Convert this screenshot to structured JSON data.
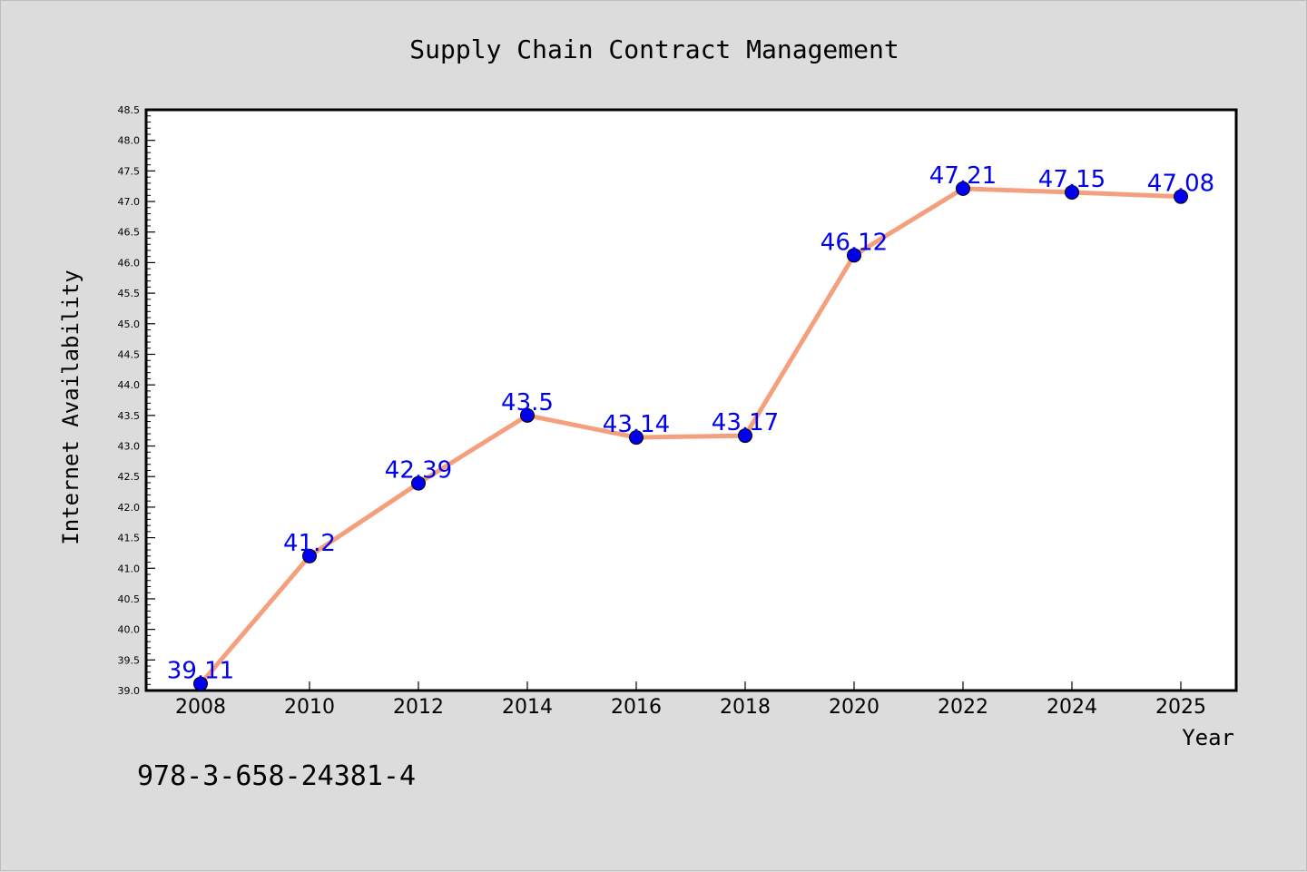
{
  "chart_data": {
    "type": "line",
    "title": "Supply Chain Contract Management",
    "xlabel": "Year",
    "ylabel": "Internet Availability",
    "categories": [
      "2008",
      "2010",
      "2012",
      "2014",
      "2016",
      "2018",
      "2020",
      "2022",
      "2024",
      "2025"
    ],
    "series": [
      {
        "values": [
          39.11,
          41.2,
          42.39,
          43.5,
          43.14,
          43.17,
          46.12,
          47.21,
          47.15,
          47.08
        ],
        "data_labels": [
          "39.11",
          "41.2",
          "42.39",
          "43.5",
          "43.14",
          "43.17",
          "46.12",
          "47.21",
          "47.15",
          "47.08"
        ],
        "line_color": "#f4a07e",
        "marker_color": "#0000ee",
        "label_color": "#0000ee"
      }
    ],
    "ylim": [
      39.0,
      48.5
    ],
    "yticks": [
      "39.0",
      "39.5",
      "40.0",
      "40.5",
      "41.0",
      "41.5",
      "42.0",
      "42.5",
      "43.0",
      "43.5",
      "44.0",
      "44.5",
      "45.0",
      "45.5",
      "46.0",
      "46.5",
      "47.0",
      "47.5",
      "48.0",
      "48.5"
    ],
    "grid": false,
    "legend": "none"
  },
  "footer_code": "978-3-658-24381-4"
}
